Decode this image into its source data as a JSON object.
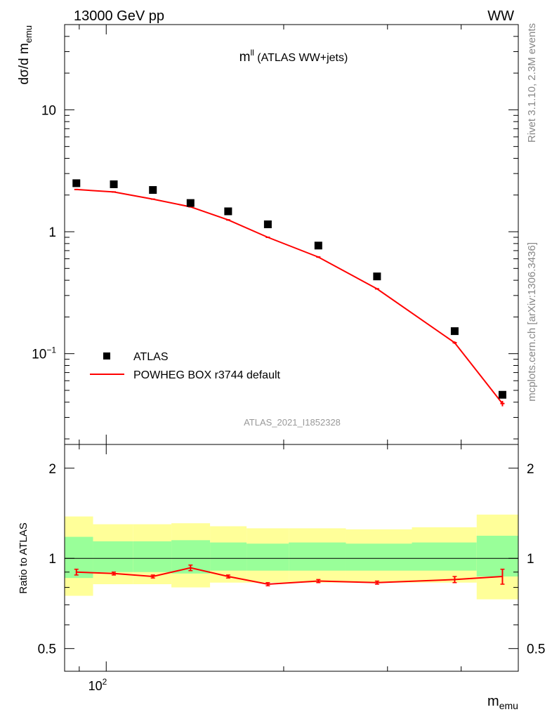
{
  "header": {
    "left": "13000 GeV pp",
    "right": "WW"
  },
  "side_labels": {
    "rivet": "Rivet 3.1.10,  2.3M events",
    "mcplots": "mcplots.cern.ch [arXiv:1306.3436]"
  },
  "colors": {
    "atlas": "#000000",
    "powheg": "#ff0000",
    "band_outer": "#ffff99",
    "band_inner": "#99ff99"
  },
  "chart_data": [
    {
      "type": "scatter",
      "panel": "main",
      "title": "m^{ll} (ATLAS WW+jets)",
      "title_main": "m",
      "title_sup": "ll",
      "title_rest": " (ATLAS WW+jets)",
      "ylabel": "dσ/d m",
      "ylabel_sub": "emu",
      "xscale": "log",
      "yscale": "log",
      "xlim": [
        85,
        500
      ],
      "ylim": [
        0.018,
        50
      ],
      "ytick_labels": [
        {
          "value": 0.1,
          "base": "10",
          "exp": "−1"
        },
        {
          "value": 1,
          "base": "1",
          "exp": ""
        },
        {
          "value": 10,
          "base": "10",
          "exp": ""
        }
      ],
      "watermark": "ATLAS_2021_I1852328",
      "legend_position": "bottom-left",
      "series": [
        {
          "name": "ATLAS",
          "style": "markers",
          "x": [
            89,
            103,
            120,
            139,
            161,
            188,
            229,
            288,
            390,
            470
          ],
          "y": [
            2.5,
            2.45,
            2.2,
            1.72,
            1.47,
            1.15,
            0.77,
            0.43,
            0.153,
            0.046
          ]
        },
        {
          "name": "POWHEG BOX r3744 default",
          "style": "line",
          "x": [
            89,
            103,
            120,
            139,
            161,
            188,
            229,
            288,
            390,
            470
          ],
          "y": [
            2.22,
            2.12,
            1.85,
            1.6,
            1.25,
            0.9,
            0.62,
            0.34,
            0.123,
            0.039
          ],
          "yerr": [
            0.02,
            0.02,
            0.02,
            0.02,
            0.02,
            0.01,
            0.01,
            0.005,
            0.003,
            0.002
          ]
        }
      ]
    },
    {
      "type": "line",
      "panel": "ratio",
      "ylabel": "Ratio to ATLAS",
      "xlabel": "m",
      "xlabel_sub": "emu",
      "xscale": "log",
      "xlim": [
        85,
        500
      ],
      "ylim": [
        0.42,
        2.4
      ],
      "ytick_labels": [
        "0.5",
        "1",
        "2"
      ],
      "xtick_label": {
        "value": 100,
        "base": "10",
        "exp": "2"
      },
      "bins": [
        85,
        95,
        111,
        129,
        150,
        173,
        204,
        255,
        330,
        425,
        500
      ],
      "band_outer": [
        [
          0.75,
          1.38
        ],
        [
          0.82,
          1.3
        ],
        [
          0.82,
          1.3
        ],
        [
          0.8,
          1.31
        ],
        [
          0.83,
          1.28
        ],
        [
          0.83,
          1.26
        ],
        [
          0.83,
          1.26
        ],
        [
          0.83,
          1.25
        ],
        [
          0.83,
          1.27
        ],
        [
          0.73,
          1.4
        ]
      ],
      "band_inner": [
        [
          0.86,
          1.18
        ],
        [
          0.9,
          1.14
        ],
        [
          0.9,
          1.14
        ],
        [
          0.89,
          1.15
        ],
        [
          0.91,
          1.13
        ],
        [
          0.91,
          1.12
        ],
        [
          0.91,
          1.13
        ],
        [
          0.91,
          1.12
        ],
        [
          0.91,
          1.13
        ],
        [
          0.87,
          1.19
        ]
      ],
      "series": [
        {
          "name": "POWHEG BOX r3744 default",
          "x": [
            89,
            103,
            120,
            139,
            161,
            188,
            229,
            288,
            390,
            470
          ],
          "y": [
            0.9,
            0.89,
            0.87,
            0.93,
            0.87,
            0.82,
            0.84,
            0.83,
            0.85,
            0.87
          ],
          "yerr": [
            0.02,
            0.01,
            0.01,
            0.02,
            0.01,
            0.01,
            0.01,
            0.01,
            0.02,
            0.05
          ]
        }
      ]
    }
  ]
}
